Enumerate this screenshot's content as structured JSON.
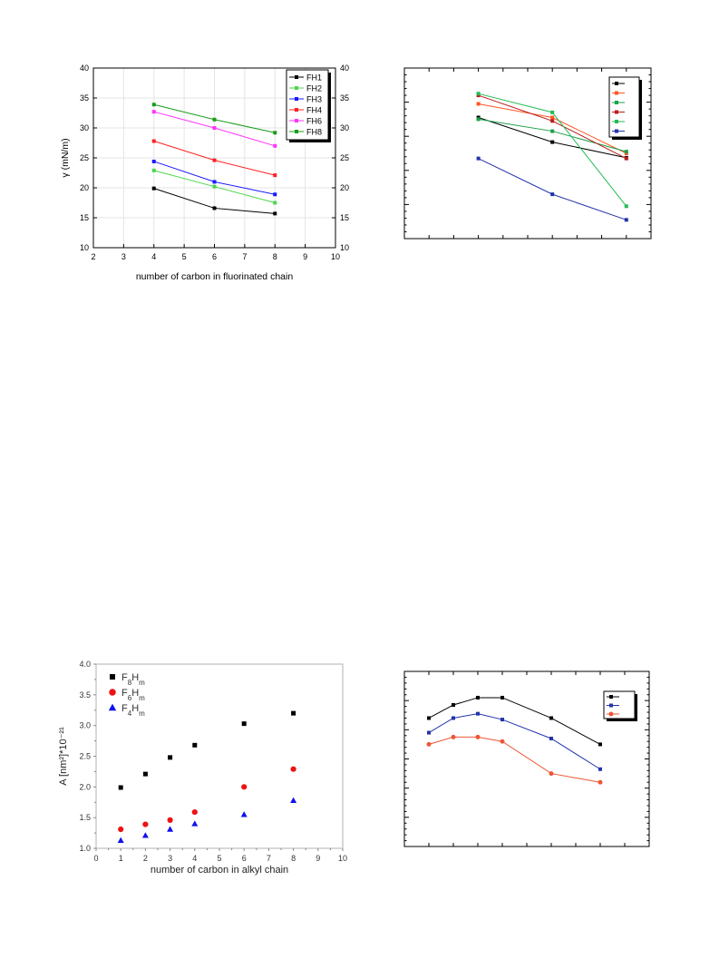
{
  "chart_data": [
    {
      "type": "line",
      "xlabel": "number of carbon in fluorinated chain",
      "ylabel": "γ (mN/m)",
      "xlim": [
        2,
        10
      ],
      "ylim": [
        10,
        40
      ],
      "x_ticks": [
        "2",
        "3",
        "4",
        "5",
        "6",
        "7",
        "8",
        "9",
        "10"
      ],
      "y_ticks": [
        "10",
        "15",
        "20",
        "25",
        "30",
        "35",
        "40"
      ],
      "y2_ticks": [
        "10",
        "15",
        "20",
        "25",
        "30",
        "35",
        "40"
      ],
      "legend_position": "top-right",
      "grid": true,
      "series": [
        {
          "name": "FH1",
          "color": "#000000",
          "marker": "square",
          "x": [
            4,
            6,
            8
          ],
          "y": [
            19.9,
            16.6,
            15.7
          ]
        },
        {
          "name": "FH2",
          "color": "#4cd64c",
          "marker": "square",
          "x": [
            4,
            6,
            8
          ],
          "y": [
            22.9,
            20.2,
            17.5
          ]
        },
        {
          "name": "FH3",
          "color": "#1a1aff",
          "marker": "square",
          "x": [
            4,
            6,
            8
          ],
          "y": [
            24.4,
            21.0,
            18.9
          ]
        },
        {
          "name": "FH4",
          "color": "#ff2020",
          "marker": "square",
          "x": [
            4,
            6,
            8
          ],
          "y": [
            27.8,
            24.6,
            22.1
          ]
        },
        {
          "name": "FH6",
          "color": "#ff33ff",
          "marker": "square",
          "x": [
            4,
            6,
            8
          ],
          "y": [
            32.7,
            30.0,
            27.0
          ]
        },
        {
          "name": "FH8",
          "color": "#1a9c1a",
          "marker": "square",
          "x": [
            4,
            6,
            8
          ],
          "y": [
            33.9,
            31.4,
            29.2
          ]
        }
      ]
    },
    {
      "type": "line",
      "xlabel": "",
      "ylabel": "",
      "xlim": [
        0,
        10
      ],
      "ylim": [
        0,
        5
      ],
      "grid": false,
      "legend_position": "top-right",
      "series": [
        {
          "color": "#000000",
          "marker": "square",
          "x": [
            3,
            6,
            9
          ],
          "y": [
            3.55,
            2.83,
            2.37
          ]
        },
        {
          "color": "#ff5522",
          "marker": "square",
          "x": [
            3,
            6,
            9
          ],
          "y": [
            3.95,
            3.55,
            2.5
          ]
        },
        {
          "color": "#1aa04a",
          "marker": "square",
          "x": [
            3,
            6,
            9
          ],
          "y": [
            3.5,
            3.15,
            2.55
          ]
        },
        {
          "color": "#b81c1c",
          "marker": "square",
          "x": [
            3,
            6,
            9
          ],
          "y": [
            4.2,
            3.45,
            2.35
          ]
        },
        {
          "color": "#22bb55",
          "marker": "square",
          "x": [
            3,
            6,
            9
          ],
          "y": [
            4.25,
            3.7,
            0.95
          ]
        },
        {
          "color": "#2233aa",
          "marker": "square",
          "x": [
            3,
            6,
            9
          ],
          "y": [
            2.35,
            1.3,
            0.55
          ]
        }
      ]
    },
    {
      "type": "scatter",
      "xlabel": "number of carbon in alkyl chain",
      "ylabel": "A [nm²]*10⁻²¹",
      "xlim": [
        0,
        10
      ],
      "ylim": [
        1.0,
        4.0
      ],
      "x_ticks": [
        "0",
        "1",
        "2",
        "3",
        "4",
        "5",
        "6",
        "7",
        "8",
        "9",
        "10"
      ],
      "y_ticks": [
        "1.0",
        "1.5",
        "2.0",
        "2.5",
        "3.0",
        "3.5",
        "4.0"
      ],
      "legend_position": "top-left",
      "grid": false,
      "series": [
        {
          "name": "F8Hm",
          "legend_main": "F",
          "legend_sub1": "8",
          "legend_mid": "H",
          "legend_sub2": "m",
          "color": "#000000",
          "marker": "square",
          "x": [
            1,
            2,
            3,
            4,
            6,
            8
          ],
          "y": [
            1.99,
            2.21,
            2.48,
            2.68,
            3.03,
            3.2
          ]
        },
        {
          "name": "F6Hm",
          "legend_main": "F",
          "legend_sub1": "6",
          "legend_mid": "H",
          "legend_sub2": "m",
          "color": "#ee1111",
          "marker": "circle",
          "x": [
            1,
            2,
            3,
            4,
            6,
            8
          ],
          "y": [
            1.31,
            1.39,
            1.46,
            1.59,
            2.0,
            2.29
          ]
        },
        {
          "name": "F4Hm",
          "legend_main": "F",
          "legend_sub1": "4",
          "legend_mid": "H",
          "legend_sub2": "m",
          "color": "#1111ee",
          "marker": "triangle",
          "x": [
            1,
            2,
            3,
            4,
            6,
            8
          ],
          "y": [
            1.13,
            1.21,
            1.31,
            1.4,
            1.55,
            1.78
          ]
        }
      ]
    },
    {
      "type": "line",
      "xlabel": "",
      "ylabel": "",
      "xlim": [
        0,
        10
      ],
      "ylim": [
        0,
        6
      ],
      "grid": false,
      "legend_position": "top-right",
      "series": [
        {
          "color": "#000000",
          "marker": "square",
          "x": [
            1,
            2,
            3,
            4,
            6,
            8
          ],
          "y": [
            4.4,
            4.85,
            5.1,
            5.1,
            4.4,
            3.5
          ]
        },
        {
          "color": "#2233aa",
          "marker": "square",
          "x": [
            1,
            2,
            3,
            4,
            6,
            8
          ],
          "y": [
            3.9,
            4.4,
            4.55,
            4.35,
            3.7,
            2.65
          ]
        },
        {
          "color": "#ee5533",
          "marker": "circle",
          "x": [
            1,
            2,
            3,
            4,
            6,
            8
          ],
          "y": [
            3.5,
            3.75,
            3.75,
            3.6,
            2.5,
            2.2
          ]
        }
      ]
    }
  ]
}
